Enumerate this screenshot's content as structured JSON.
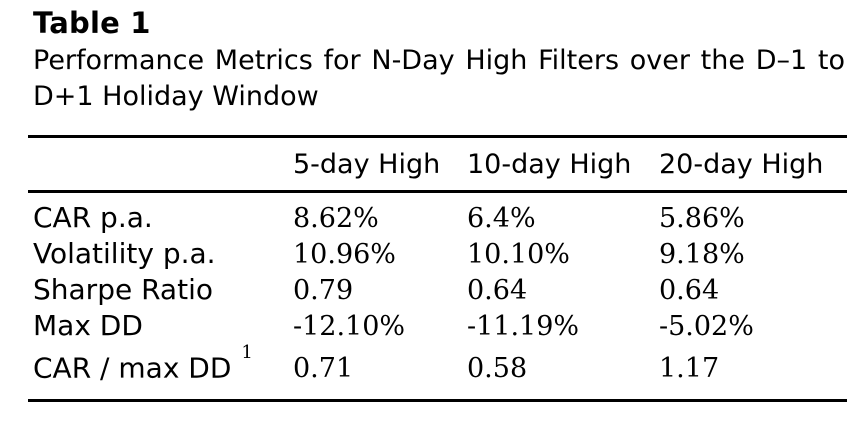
{
  "title": "Table 1",
  "caption": {
    "line1": "Performance Metrics for N-Day High Filters over the D–1 to",
    "line2": "D+1 Holiday Window"
  },
  "chart_data": {
    "type": "table",
    "columns": [
      "5-day High",
      "10-day High",
      "20-day High"
    ],
    "rows": [
      {
        "label": "CAR p.a.",
        "values": [
          "8.62%",
          "6.4%",
          "5.86%"
        ]
      },
      {
        "label": "Volatility p.a.",
        "values": [
          "10.96%",
          "10.10%",
          "9.18%"
        ]
      },
      {
        "label": "Sharpe Ratio",
        "values": [
          "0.79",
          "0.64",
          "0.64"
        ]
      },
      {
        "label": "Max DD",
        "values": [
          "-12.10%",
          "-11.19%",
          "-5.02%"
        ]
      },
      {
        "label": "CAR / max DD",
        "footnote_marker": "1",
        "values": [
          "0.71",
          "0.58",
          "1.17"
        ]
      }
    ]
  },
  "colors": {
    "background": "#ffffff",
    "text": "#000000",
    "rule": "#000000"
  }
}
